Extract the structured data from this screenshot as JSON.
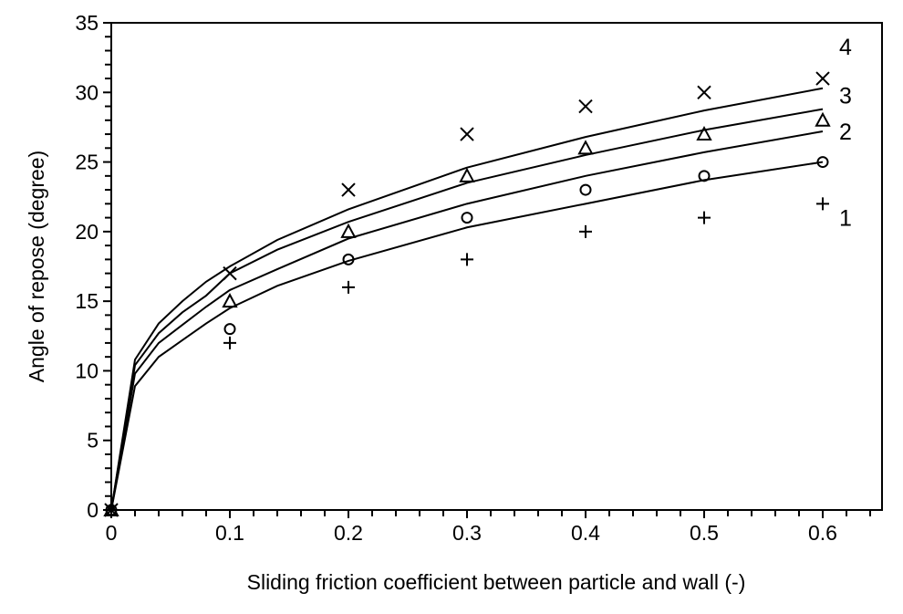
{
  "chart_data": {
    "type": "scatter",
    "title": "",
    "xlabel": "Sliding friction coefficient between particle and wall (-)",
    "ylabel": "Angle of repose (degree)",
    "xlim": [
      0,
      0.65
    ],
    "ylim": [
      0,
      35
    ],
    "xticks": [
      "0",
      "0.1",
      "0.2",
      "0.3",
      "0.4",
      "0.5",
      "0.6"
    ],
    "yticks": [
      "0",
      "5",
      "10",
      "15",
      "20",
      "25",
      "30",
      "35"
    ],
    "grid": false,
    "markers": [
      {
        "symbol": "plus",
        "x": [
          0,
          0.1,
          0.2,
          0.3,
          0.4,
          0.5,
          0.6
        ],
        "y": [
          0,
          12,
          16,
          18,
          20,
          21,
          22
        ]
      },
      {
        "symbol": "circle",
        "x": [
          0,
          0.1,
          0.2,
          0.3,
          0.4,
          0.5,
          0.6
        ],
        "y": [
          0,
          13,
          18,
          21,
          23,
          24,
          25
        ]
      },
      {
        "symbol": "triangle",
        "x": [
          0,
          0.1,
          0.2,
          0.3,
          0.4,
          0.5,
          0.6
        ],
        "y": [
          0,
          15,
          20,
          24,
          26,
          27,
          28
        ]
      },
      {
        "symbol": "cross",
        "x": [
          0,
          0.1,
          0.2,
          0.3,
          0.4,
          0.5,
          0.6
        ],
        "y": [
          0,
          17,
          23,
          27,
          29,
          30,
          31
        ]
      }
    ],
    "lines": [
      {
        "label": "1",
        "x": [
          0,
          0.02,
          0.04,
          0.06,
          0.08,
          0.1,
          0.14,
          0.2,
          0.3,
          0.4,
          0.5,
          0.6
        ],
        "y": [
          0,
          8.9,
          11.0,
          12.2,
          13.4,
          14.5,
          16.1,
          17.9,
          20.3,
          22.0,
          23.7,
          25.0
        ]
      },
      {
        "label": "2",
        "x": [
          0,
          0.02,
          0.04,
          0.06,
          0.08,
          0.1,
          0.14,
          0.2,
          0.3,
          0.4,
          0.5,
          0.6
        ],
        "y": [
          0,
          9.8,
          12.0,
          13.3,
          14.6,
          15.8,
          17.3,
          19.5,
          22.0,
          24.0,
          25.7,
          27.2
        ]
      },
      {
        "label": "3",
        "x": [
          0,
          0.02,
          0.04,
          0.06,
          0.08,
          0.1,
          0.14,
          0.2,
          0.3,
          0.4,
          0.5,
          0.6
        ],
        "y": [
          0,
          10.4,
          12.7,
          14.2,
          15.4,
          17.0,
          18.7,
          20.7,
          23.5,
          25.5,
          27.3,
          28.8
        ]
      },
      {
        "label": "4",
        "x": [
          0,
          0.02,
          0.04,
          0.06,
          0.08,
          0.1,
          0.14,
          0.2,
          0.3,
          0.4,
          0.5,
          0.6
        ],
        "y": [
          0,
          10.8,
          13.4,
          15.0,
          16.4,
          17.5,
          19.4,
          21.6,
          24.6,
          26.8,
          28.7,
          30.3
        ]
      }
    ],
    "colors": {
      "ink": "#000000",
      "background": "#ffffff"
    }
  }
}
